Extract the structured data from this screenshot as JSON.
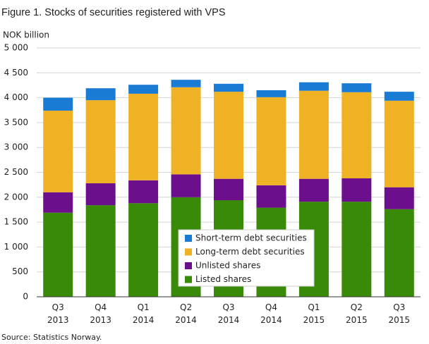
{
  "chart_data": {
    "type": "stacked-bar",
    "title": "Figure 1. Stocks of securities registered with VPS",
    "y_label": "NOK billion",
    "source": "Source: Statistics Norway.",
    "categories": [
      "Q3 2013",
      "Q4 2013",
      "Q1 2014",
      "Q2 2014",
      "Q3 2014",
      "Q4 2014",
      "Q1 2015",
      "Q2 2015",
      "Q3 2015"
    ],
    "series": [
      {
        "name": "Listed shares",
        "color": "#3a8a0a",
        "values": [
          1690,
          1840,
          1880,
          2000,
          1940,
          1790,
          1910,
          1910,
          1760
        ]
      },
      {
        "name": "Unlisted shares",
        "color": "#6b0f8c",
        "values": [
          410,
          440,
          460,
          460,
          430,
          450,
          460,
          470,
          440
        ]
      },
      {
        "name": "Long-term debt securities",
        "color": "#efb224",
        "values": [
          1640,
          1670,
          1740,
          1750,
          1750,
          1770,
          1770,
          1730,
          1740
        ]
      },
      {
        "name": "Short-term debt securities",
        "color": "#1a7bd4",
        "values": [
          260,
          240,
          180,
          150,
          160,
          140,
          170,
          180,
          180
        ]
      }
    ],
    "ylim": [
      0,
      5000
    ],
    "yticks": [
      0,
      500,
      {
        "value": 1000,
        "label": "1 000"
      },
      {
        "value": 1500,
        "label": "1 500"
      },
      {
        "value": 2000,
        "label": "2 000"
      },
      {
        "value": 2500,
        "label": "2 500"
      },
      {
        "value": 3000,
        "label": "3 000"
      },
      {
        "value": 3500,
        "label": "3 500"
      },
      {
        "value": 4000,
        "label": "4 000"
      },
      {
        "value": 4500,
        "label": "4 500"
      },
      {
        "value": 5000,
        "label": "5 000"
      }
    ],
    "grid": true
  }
}
